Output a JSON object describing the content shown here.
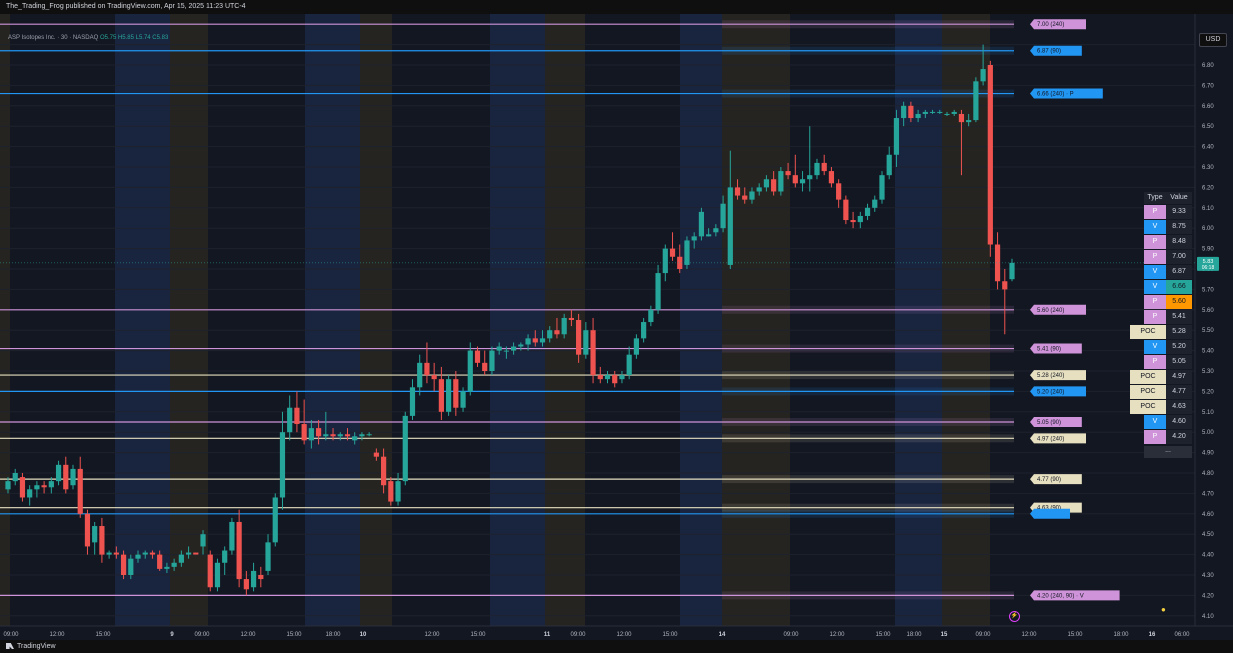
{
  "publisher_line": "The_Trading_Frog published on TradingView.com, Apr 15, 2025 11:23 UTC-4",
  "footer_brand": "TradingView",
  "currency_label": "USD",
  "symbol_legend": "ASP Isotopes Inc. · 30 · NASDAQ",
  "legend_ohlc": "O5.75 H5.85 L5.74 C5.83",
  "price_badge": {
    "value": "5.83",
    "countdown": "06:18"
  },
  "colors": {
    "up": "#26a69a",
    "down": "#ef5350",
    "p_level": "#ce93d8",
    "v_level": "#2196f3",
    "poc_level": "#e6dfc0",
    "asia_session": "#1c2a4a",
    "london_session": "#2e2a22"
  },
  "table": {
    "header_type": "Type",
    "header_value": "Value",
    "rows": [
      {
        "type": "P",
        "value": "9.33"
      },
      {
        "type": "V",
        "value": "8.75"
      },
      {
        "type": "P",
        "value": "8.48"
      },
      {
        "type": "P",
        "value": "7.00"
      },
      {
        "type": "V",
        "value": "6.87"
      },
      {
        "type": "V",
        "value": "6.66"
      },
      {
        "type": "P",
        "value": "5.60"
      },
      {
        "type": "P",
        "value": "5.41"
      },
      {
        "type": "POC",
        "value": "5.28"
      },
      {
        "type": "V",
        "value": "5.20"
      },
      {
        "type": "P",
        "value": "5.05"
      },
      {
        "type": "POC",
        "value": "4.97"
      },
      {
        "type": "POC",
        "value": "4.77"
      },
      {
        "type": "POC",
        "value": "4.63"
      },
      {
        "type": "V",
        "value": "4.60"
      },
      {
        "type": "P",
        "value": "4.20"
      }
    ],
    "more": "..."
  },
  "chart_data": {
    "type": "candlestick",
    "ylim": [
      4.05,
      7.05
    ],
    "y_ticks": [
      "6.90",
      "6.80",
      "6.70",
      "6.60",
      "6.50",
      "6.40",
      "6.30",
      "6.20",
      "6.10",
      "6.00",
      "5.90",
      "5.80",
      "5.70",
      "5.60",
      "5.50",
      "5.40",
      "5.30",
      "5.20",
      "5.10",
      "5.00",
      "4.90",
      "4.80",
      "4.70",
      "4.60",
      "4.50",
      "4.40",
      "4.30",
      "4.20",
      "4.10"
    ],
    "x_ticks": [
      "09:00",
      "12:00",
      "15:00",
      "9",
      "09:00",
      "12:00",
      "15:00",
      "18:00",
      "10",
      "12:00",
      "15:00",
      "11",
      "09:00",
      "12:00",
      "15:00",
      "14",
      "09:00",
      "12:00",
      "15:00",
      "18:00",
      "15",
      "09:00",
      "12:00",
      "15:00",
      "18:00",
      "16",
      "06:00"
    ],
    "levels": [
      {
        "price": 7.0,
        "kind": "P",
        "label": "7.00 (240)"
      },
      {
        "price": 6.87,
        "kind": "V",
        "label": "6.87 (90)"
      },
      {
        "price": 6.66,
        "kind": "V",
        "label": "6.66 (240) · P"
      },
      {
        "price": 5.6,
        "kind": "P",
        "label": "5.60 (240)"
      },
      {
        "price": 5.41,
        "kind": "P",
        "label": "5.41 (90)"
      },
      {
        "price": 5.28,
        "kind": "POC",
        "label": "5.28 (240)"
      },
      {
        "price": 5.2,
        "kind": "V",
        "label": "5.20 (240)"
      },
      {
        "price": 5.05,
        "kind": "P",
        "label": "5.05 (90)"
      },
      {
        "price": 4.97,
        "kind": "POC",
        "label": "4.97 (240)"
      },
      {
        "price": 4.77,
        "kind": "POC",
        "label": "4.77 (90)"
      },
      {
        "price": 4.63,
        "kind": "POC",
        "label": "4.63 (90)"
      },
      {
        "price": 4.6,
        "kind": "V",
        "label": ""
      },
      {
        "price": 4.2,
        "kind": "P",
        "label": "4.20 (240, 90) · V"
      }
    ],
    "candles": [
      [
        4.72,
        4.78,
        4.7,
        4.76
      ],
      [
        4.76,
        4.82,
        4.74,
        4.8
      ],
      [
        4.78,
        4.8,
        4.66,
        4.68
      ],
      [
        4.68,
        4.74,
        4.64,
        4.72
      ],
      [
        4.72,
        4.76,
        4.68,
        4.74
      ],
      [
        4.74,
        4.76,
        4.7,
        4.73
      ],
      [
        4.73,
        4.78,
        4.7,
        4.76
      ],
      [
        4.76,
        4.86,
        4.74,
        4.84
      ],
      [
        4.84,
        4.88,
        4.7,
        4.72
      ],
      [
        4.74,
        4.84,
        4.72,
        4.82
      ],
      [
        4.82,
        4.88,
        4.58,
        4.6
      ],
      [
        4.6,
        4.62,
        4.4,
        4.44
      ],
      [
        4.46,
        4.56,
        4.4,
        4.54
      ],
      [
        4.54,
        4.58,
        4.36,
        4.4
      ],
      [
        4.4,
        4.42,
        4.38,
        4.41
      ],
      [
        4.41,
        4.44,
        4.38,
        4.4
      ],
      [
        4.4,
        4.42,
        4.28,
        4.3
      ],
      [
        4.3,
        4.4,
        4.28,
        4.38
      ],
      [
        4.38,
        4.42,
        4.36,
        4.4
      ],
      [
        4.4,
        4.42,
        4.38,
        4.41
      ],
      [
        4.41,
        4.42,
        4.38,
        4.4
      ],
      [
        4.4,
        4.42,
        4.32,
        4.33
      ],
      [
        4.33,
        4.36,
        4.31,
        4.34
      ],
      [
        4.34,
        4.38,
        4.32,
        4.36
      ],
      [
        4.36,
        4.42,
        4.34,
        4.4
      ],
      [
        4.4,
        4.44,
        4.38,
        4.41
      ],
      [
        4.41,
        4.4,
        4.4,
        4.4
      ],
      [
        4.44,
        4.52,
        4.4,
        4.5
      ],
      [
        4.4,
        4.42,
        4.22,
        4.24
      ],
      [
        4.24,
        4.38,
        4.22,
        4.36
      ],
      [
        4.36,
        4.44,
        4.3,
        4.42
      ],
      [
        4.42,
        4.58,
        4.4,
        4.56
      ],
      [
        4.56,
        4.62,
        4.24,
        4.28
      ],
      [
        4.28,
        4.32,
        4.2,
        4.23
      ],
      [
        4.24,
        4.36,
        4.22,
        4.32
      ],
      [
        4.3,
        4.34,
        4.24,
        4.28
      ],
      [
        4.32,
        4.5,
        4.3,
        4.46
      ],
      [
        4.46,
        4.7,
        4.44,
        4.68
      ],
      [
        4.68,
        5.1,
        4.62,
        5.0
      ],
      [
        5.0,
        5.18,
        4.96,
        5.12
      ],
      [
        5.12,
        5.2,
        5.0,
        5.04
      ],
      [
        5.04,
        5.16,
        4.94,
        4.96
      ],
      [
        4.96,
        5.06,
        4.92,
        5.02
      ],
      [
        5.02,
        5.06,
        4.94,
        4.98
      ],
      [
        4.98,
        5.1,
        4.96,
        4.99
      ],
      [
        4.99,
        5.02,
        4.96,
        4.98
      ],
      [
        4.98,
        5.0,
        4.96,
        4.99
      ],
      [
        4.99,
        5.02,
        4.96,
        4.98
      ],
      [
        4.96,
        5.0,
        4.94,
        4.98
      ],
      [
        4.98,
        5.0,
        4.96,
        4.99
      ],
      [
        4.99,
        5.0,
        4.98,
        4.99
      ],
      [
        4.9,
        4.92,
        4.86,
        4.88
      ],
      [
        4.88,
        4.92,
        4.7,
        4.74
      ],
      [
        4.76,
        4.78,
        4.64,
        4.66
      ],
      [
        4.66,
        4.8,
        4.64,
        4.76
      ],
      [
        4.76,
        5.1,
        4.74,
        5.08
      ],
      [
        5.08,
        5.26,
        5.06,
        5.22
      ],
      [
        5.22,
        5.38,
        5.18,
        5.34
      ],
      [
        5.34,
        5.44,
        5.24,
        5.28
      ],
      [
        5.28,
        5.34,
        5.2,
        5.26
      ],
      [
        5.26,
        5.32,
        5.06,
        5.1
      ],
      [
        5.1,
        5.28,
        5.08,
        5.26
      ],
      [
        5.26,
        5.3,
        5.08,
        5.12
      ],
      [
        5.12,
        5.22,
        5.1,
        5.2
      ],
      [
        5.2,
        5.44,
        5.18,
        5.4
      ],
      [
        5.4,
        5.42,
        5.32,
        5.34
      ],
      [
        5.34,
        5.4,
        5.28,
        5.3
      ],
      [
        5.3,
        5.42,
        5.28,
        5.4
      ],
      [
        5.4,
        5.44,
        5.38,
        5.42
      ],
      [
        5.4,
        5.42,
        5.36,
        5.4
      ],
      [
        5.4,
        5.44,
        5.38,
        5.42
      ],
      [
        5.42,
        5.44,
        5.4,
        5.43
      ],
      [
        5.43,
        5.48,
        5.4,
        5.46
      ],
      [
        5.46,
        5.5,
        5.42,
        5.44
      ],
      [
        5.44,
        5.5,
        5.42,
        5.46
      ],
      [
        5.46,
        5.52,
        5.44,
        5.5
      ],
      [
        5.5,
        5.56,
        5.46,
        5.48
      ],
      [
        5.48,
        5.58,
        5.46,
        5.56
      ],
      [
        5.56,
        5.6,
        5.52,
        5.55
      ],
      [
        5.55,
        5.58,
        5.34,
        5.38
      ],
      [
        5.38,
        5.54,
        5.36,
        5.5
      ],
      [
        5.5,
        5.56,
        5.24,
        5.28
      ],
      [
        5.28,
        5.32,
        5.24,
        5.26
      ],
      [
        5.26,
        5.3,
        5.24,
        5.28
      ],
      [
        5.28,
        5.3,
        5.22,
        5.24
      ],
      [
        5.26,
        5.3,
        5.24,
        5.28
      ],
      [
        5.28,
        5.42,
        5.26,
        5.38
      ],
      [
        5.38,
        5.48,
        5.36,
        5.46
      ],
      [
        5.46,
        5.56,
        5.44,
        5.54
      ],
      [
        5.54,
        5.62,
        5.52,
        5.6
      ],
      [
        5.6,
        5.82,
        5.58,
        5.78
      ],
      [
        5.78,
        5.92,
        5.74,
        5.9
      ],
      [
        5.9,
        5.98,
        5.84,
        5.86
      ],
      [
        5.86,
        5.92,
        5.78,
        5.8
      ],
      [
        5.82,
        5.96,
        5.8,
        5.94
      ],
      [
        5.94,
        5.98,
        5.9,
        5.96
      ],
      [
        5.96,
        6.1,
        5.94,
        6.08
      ],
      [
        5.96,
        6.0,
        5.96,
        5.97
      ],
      [
        5.98,
        6.02,
        5.96,
        6.0
      ],
      [
        6.0,
        6.16,
        5.98,
        6.12
      ],
      [
        5.82,
        6.38,
        5.8,
        6.2
      ],
      [
        6.2,
        6.24,
        6.14,
        6.16
      ],
      [
        6.16,
        6.2,
        6.12,
        6.14
      ],
      [
        6.14,
        6.2,
        6.12,
        6.18
      ],
      [
        6.18,
        6.22,
        6.16,
        6.2
      ],
      [
        6.2,
        6.26,
        6.18,
        6.24
      ],
      [
        6.24,
        6.28,
        6.16,
        6.18
      ],
      [
        6.18,
        6.3,
        6.16,
        6.28
      ],
      [
        6.28,
        6.32,
        6.24,
        6.26
      ],
      [
        6.26,
        6.36,
        6.2,
        6.22
      ],
      [
        6.22,
        6.28,
        6.18,
        6.24
      ],
      [
        6.24,
        6.5,
        6.18,
        6.26
      ],
      [
        6.26,
        6.34,
        6.24,
        6.32
      ],
      [
        6.32,
        6.36,
        6.26,
        6.28
      ],
      [
        6.28,
        6.3,
        6.2,
        6.22
      ],
      [
        6.22,
        6.24,
        6.1,
        6.14
      ],
      [
        6.14,
        6.16,
        6.02,
        6.04
      ],
      [
        6.04,
        6.08,
        6.0,
        6.03
      ],
      [
        6.03,
        6.08,
        6.0,
        6.06
      ],
      [
        6.06,
        6.12,
        6.04,
        6.1
      ],
      [
        6.1,
        6.16,
        6.08,
        6.14
      ],
      [
        6.14,
        6.28,
        6.12,
        6.26
      ],
      [
        6.26,
        6.4,
        6.24,
        6.36
      ],
      [
        6.36,
        6.58,
        6.3,
        6.54
      ],
      [
        6.54,
        6.62,
        6.5,
        6.6
      ],
      [
        6.6,
        6.62,
        6.52,
        6.54
      ],
      [
        6.54,
        6.58,
        6.52,
        6.56
      ],
      [
        6.56,
        6.58,
        6.54,
        6.57
      ],
      [
        6.57,
        6.58,
        6.56,
        6.57
      ],
      [
        6.57,
        6.58,
        6.56,
        6.57
      ],
      [
        6.56,
        6.57,
        6.55,
        6.56
      ],
      [
        6.56,
        6.58,
        6.55,
        6.57
      ],
      [
        6.56,
        6.58,
        6.26,
        6.52
      ],
      [
        6.52,
        6.56,
        6.5,
        6.53
      ],
      [
        6.53,
        6.74,
        6.52,
        6.72
      ],
      [
        6.72,
        6.9,
        6.7,
        6.78
      ],
      [
        6.8,
        6.82,
        5.86,
        5.92
      ],
      [
        5.92,
        5.98,
        5.7,
        5.74
      ],
      [
        5.74,
        5.8,
        5.48,
        5.7
      ],
      [
        5.75,
        5.85,
        5.74,
        5.83
      ]
    ]
  }
}
